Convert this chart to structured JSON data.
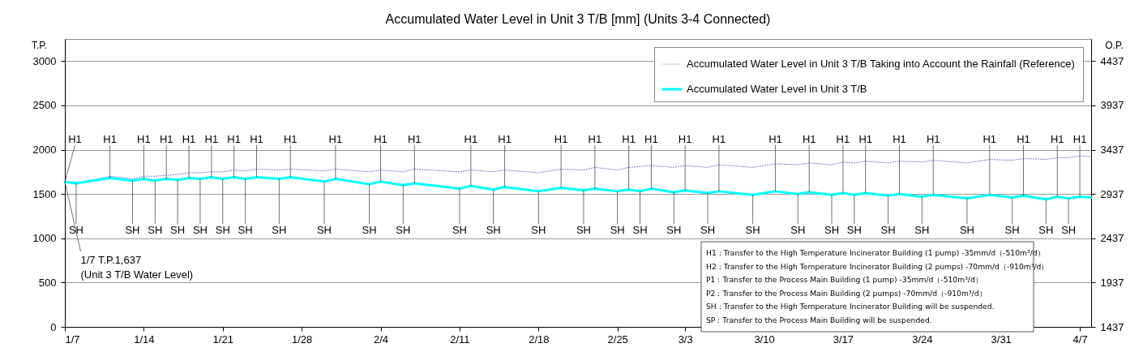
{
  "chart_data": {
    "type": "line",
    "title": "Accumulated Water Level in Unit 3 T/B [mm] (Units 3-4 Connected)",
    "ylabel": "T.P.",
    "y2label": "O.P.",
    "x": [
      "--01-07",
      "--01-08",
      "--01-11",
      "--01-13",
      "--01-14",
      "--01-15",
      "--01-16",
      "--01-17",
      "--01-18",
      "--01-19",
      "--01-20",
      "--01-21",
      "--01-22",
      "--01-23",
      "--01-24",
      "--01-26",
      "--01-27",
      "--01-30",
      "--01-31",
      "--02-03",
      "--02-04",
      "--02-06",
      "--02-07",
      "--02-11",
      "--02-12",
      "--02-14",
      "--02-15",
      "--02-18",
      "--02-20",
      "--02-22",
      "--02-23",
      "--02-25",
      "--02-26",
      "--02-27",
      "--02-28",
      "--03-02",
      "--03-03",
      "--03-05",
      "--03-06",
      "--03-09",
      "--03-11",
      "--03-13",
      "--03-14",
      "--03-16",
      "--03-17",
      "--03-18",
      "--03-19",
      "--03-21",
      "--03-22",
      "--03-24",
      "--03-25",
      "--03-28",
      "--03-30",
      "--04-01",
      "--04-02",
      "--04-04",
      "--04-05",
      "--04-06",
      "--04-07",
      "--04-08"
    ],
    "series": [
      {
        "name": "Accumulated Water Level in Unit 3 T/B Taking into Account the Rainfall (Reference)",
        "color": "#7070c8",
        "line_style": "dotted",
        "values": [
          1640,
          1620,
          1700,
          1670,
          1700,
          1700,
          1710,
          1720,
          1740,
          1740,
          1750,
          1750,
          1770,
          1760,
          1780,
          1770,
          1780,
          1760,
          1780,
          1750,
          1770,
          1750,
          1780,
          1750,
          1770,
          1750,
          1770,
          1740,
          1780,
          1770,
          1800,
          1770,
          1800,
          1810,
          1820,
          1800,
          1820,
          1800,
          1830,
          1800,
          1840,
          1830,
          1850,
          1830,
          1860,
          1850,
          1870,
          1850,
          1870,
          1860,
          1880,
          1850,
          1890,
          1880,
          1900,
          1890,
          1910,
          1910,
          1930,
          1920
        ]
      },
      {
        "name": "Accumulated Water Level in Unit 3 T/B",
        "color": "#00ffff",
        "line_style": "solid",
        "values": [
          1637,
          1620,
          1680,
          1650,
          1670,
          1650,
          1670,
          1660,
          1680,
          1670,
          1690,
          1670,
          1690,
          1670,
          1690,
          1670,
          1690,
          1640,
          1670,
          1610,
          1640,
          1600,
          1620,
          1560,
          1590,
          1550,
          1580,
          1530,
          1570,
          1540,
          1560,
          1530,
          1550,
          1530,
          1560,
          1520,
          1540,
          1510,
          1530,
          1490,
          1530,
          1500,
          1520,
          1490,
          1510,
          1490,
          1510,
          1480,
          1500,
          1470,
          1490,
          1450,
          1490,
          1460,
          1480,
          1440,
          1470,
          1450,
          1470,
          1460
        ]
      }
    ],
    "xlim": [
      "--01-07",
      "--04-08"
    ],
    "xticks": [
      {
        "value": "--01-07",
        "label": "1/7"
      },
      {
        "value": "--01-14",
        "label": "1/14"
      },
      {
        "value": "--01-21",
        "label": "1/21"
      },
      {
        "value": "--01-28",
        "label": "1/28"
      },
      {
        "value": "--02-04",
        "label": "2/4"
      },
      {
        "value": "--02-11",
        "label": "2/11"
      },
      {
        "value": "--02-18",
        "label": "2/18"
      },
      {
        "value": "--02-25",
        "label": "2/25"
      },
      {
        "value": "--03-03",
        "label": "3/3"
      },
      {
        "value": "--03-10",
        "label": "3/10"
      },
      {
        "value": "--03-17",
        "label": "3/17"
      },
      {
        "value": "--03-24",
        "label": "3/24"
      },
      {
        "value": "--03-31",
        "label": "3/31"
      },
      {
        "value": "--04-07",
        "label": "4/7"
      }
    ],
    "ylim": [
      0,
      3250
    ],
    "yticks": [
      0,
      500,
      1000,
      1500,
      2000,
      2500,
      3000
    ],
    "y2lim": [
      1437,
      4687
    ],
    "y2ticks": [
      1437,
      1937,
      2437,
      2937,
      3437,
      3937,
      4437
    ],
    "grid": "y",
    "legend": "top right",
    "annotations": [
      {
        "text": "1/7  T.P.1,637\n(Unit 3 T/B Water Level)",
        "x": "--01-07",
        "y": 1637
      },
      {
        "text": "H1",
        "x": "--01-07",
        "y": 1637
      },
      {
        "text": "SH",
        "x": "--01-08",
        "y": 1620
      },
      {
        "text": "H1",
        "x": "--01-11",
        "y": 1680
      },
      {
        "text": "SH",
        "x": "--01-13",
        "y": 1650
      },
      {
        "text": "H1",
        "x": "--01-14",
        "y": 1670
      },
      {
        "text": "SH",
        "x": "--01-15",
        "y": 1650
      },
      {
        "text": "H1",
        "x": "--01-16",
        "y": 1670
      },
      {
        "text": "SH",
        "x": "--01-17",
        "y": 1660
      },
      {
        "text": "H1",
        "x": "--01-18",
        "y": 1680
      },
      {
        "text": "SH",
        "x": "--01-19",
        "y": 1670
      },
      {
        "text": "H1",
        "x": "--01-20",
        "y": 1690
      },
      {
        "text": "SH",
        "x": "--01-21",
        "y": 1670
      },
      {
        "text": "H1",
        "x": "--01-22",
        "y": 1690
      },
      {
        "text": "SH",
        "x": "--01-23",
        "y": 1670
      },
      {
        "text": "H1",
        "x": "--01-24",
        "y": 1690
      },
      {
        "text": "SH",
        "x": "--01-26",
        "y": 1670
      },
      {
        "text": "H1",
        "x": "--01-27",
        "y": 1690
      },
      {
        "text": "SH",
        "x": "--01-30",
        "y": 1640
      },
      {
        "text": "H1",
        "x": "--01-31",
        "y": 1670
      },
      {
        "text": "SH",
        "x": "--02-03",
        "y": 1610
      },
      {
        "text": "H1",
        "x": "--02-04",
        "y": 1640
      },
      {
        "text": "SH",
        "x": "--02-06",
        "y": 1600
      },
      {
        "text": "H1",
        "x": "--02-07",
        "y": 1620
      },
      {
        "text": "SH",
        "x": "--02-11",
        "y": 1560
      },
      {
        "text": "H1",
        "x": "--02-12",
        "y": 1590
      },
      {
        "text": "SH",
        "x": "--02-14",
        "y": 1550
      },
      {
        "text": "H1",
        "x": "--02-15",
        "y": 1580
      },
      {
        "text": "SH",
        "x": "--02-18",
        "y": 1530
      },
      {
        "text": "H1",
        "x": "--02-20",
        "y": 1570
      },
      {
        "text": "SH",
        "x": "--02-22",
        "y": 1540
      },
      {
        "text": "H1",
        "x": "--02-23",
        "y": 1560
      },
      {
        "text": "SH",
        "x": "--02-25",
        "y": 1530
      },
      {
        "text": "H1",
        "x": "--02-26",
        "y": 1550
      },
      {
        "text": "SH",
        "x": "--02-27",
        "y": 1530
      },
      {
        "text": "H1",
        "x": "--02-28",
        "y": 1560
      },
      {
        "text": "SH",
        "x": "--03-02",
        "y": 1520
      },
      {
        "text": "H1",
        "x": "--03-03",
        "y": 1540
      },
      {
        "text": "SH",
        "x": "--03-05",
        "y": 1510
      },
      {
        "text": "H1",
        "x": "--03-06",
        "y": 1530
      },
      {
        "text": "SH",
        "x": "--03-09",
        "y": 1490
      },
      {
        "text": "H1",
        "x": "--03-11",
        "y": 1530
      },
      {
        "text": "SH",
        "x": "--03-13",
        "y": 1500
      },
      {
        "text": "H1",
        "x": "--03-14",
        "y": 1520
      },
      {
        "text": "SH",
        "x": "--03-16",
        "y": 1490
      },
      {
        "text": "H1",
        "x": "--03-17",
        "y": 1510
      },
      {
        "text": "SH",
        "x": "--03-18",
        "y": 1490
      },
      {
        "text": "H1",
        "x": "--03-19",
        "y": 1510
      },
      {
        "text": "SH",
        "x": "--03-21",
        "y": 1480
      },
      {
        "text": "H1",
        "x": "--03-22",
        "y": 1500
      },
      {
        "text": "SH",
        "x": "--03-24",
        "y": 1470
      },
      {
        "text": "H1",
        "x": "--03-25",
        "y": 1490
      },
      {
        "text": "SH",
        "x": "--03-28",
        "y": 1450
      },
      {
        "text": "H1",
        "x": "--03-30",
        "y": 1490
      },
      {
        "text": "SH",
        "x": "--04-01",
        "y": 1460
      },
      {
        "text": "H1",
        "x": "--04-02",
        "y": 1480
      },
      {
        "text": "SH",
        "x": "--04-04",
        "y": 1440
      },
      {
        "text": "H1",
        "x": "--04-05",
        "y": 1470
      },
      {
        "text": "SH",
        "x": "--04-06",
        "y": 1450
      },
      {
        "text": "H1",
        "x": "--04-07",
        "y": 1470
      },
      "H1：Transfer to the High Temperature Incinerator Building  (1 pump)  -35mm/d（-510m³/d）",
      "H2：Transfer to the High Temperature Incinerator Building  (2 pumps)  -70mm/d（-910m³/d）",
      "P1：Transfer to the Process Main Building (1 pump)  -35mm/d（-510m³/d）",
      "P2：Transfer to the Process Main Building (2 pumps)  -70mm/d（-910m³/d）",
      "SH：Transfer to the High Temperature Incinerator Building will be suspended.",
      "SP：Transfer to the Process Main Building will be suspended."
    ]
  }
}
